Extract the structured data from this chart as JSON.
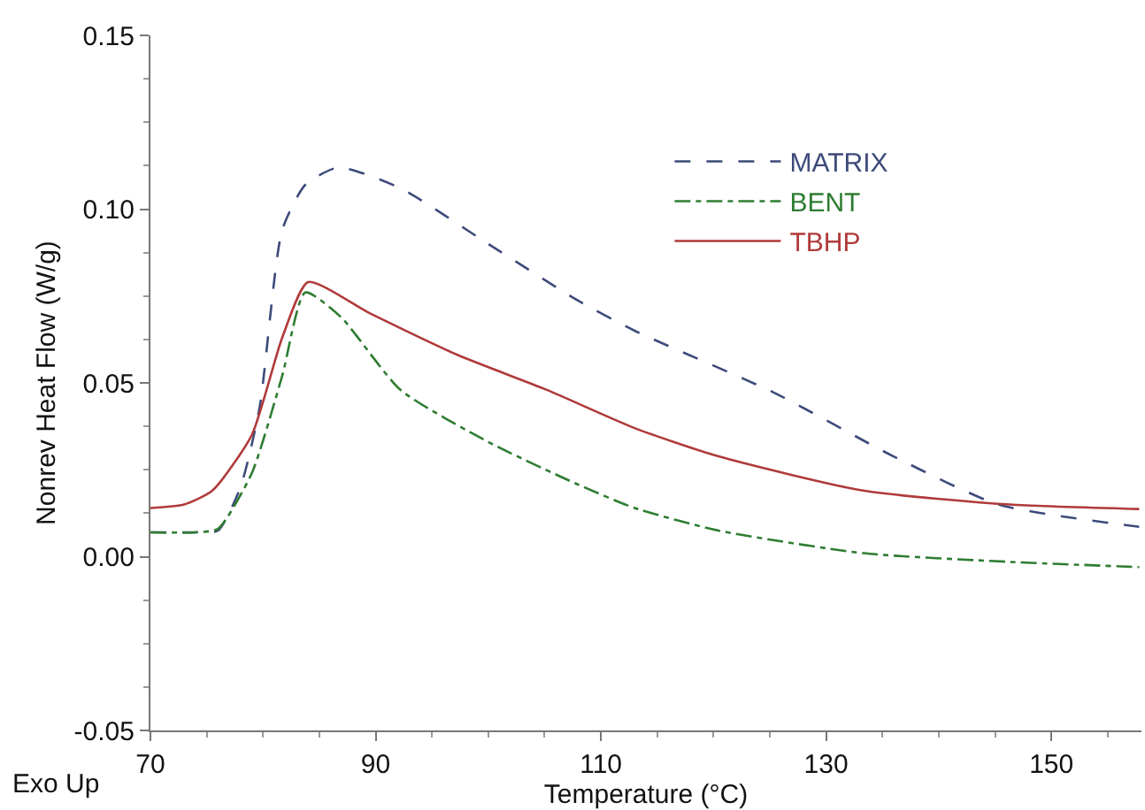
{
  "chart_data": {
    "type": "line",
    "xlabel": "Temperature (°C)",
    "ylabel": "Nonrev Heat Flow (W/g)",
    "annotations": [
      "Exo Up"
    ],
    "xlim": [
      70,
      158
    ],
    "xticks": [
      70,
      90,
      110,
      130,
      150
    ],
    "ylim": [
      -0.05,
      0.15
    ],
    "yticks": [
      {
        "value": -0.05,
        "label": "-0.05"
      },
      {
        "value": 0,
        "label": "0.00"
      },
      {
        "value": 0.05,
        "label": "0.05"
      },
      {
        "value": 0.1,
        "label": "0.10"
      },
      {
        "value": 0.15,
        "label": "0.15"
      }
    ],
    "legend": "top right",
    "marker": "none",
    "series": [
      {
        "name": "MATRIX",
        "color": "#3d4a7a",
        "line_style": "dashed",
        "x": [
          70,
          74,
          76,
          78,
          79.7,
          81.7,
          83.75,
          86.7,
          92.2,
          100,
          107.8,
          113,
          125.5,
          135.9,
          145.3,
          157.8
        ],
        "values": [
          0.007,
          0.007,
          0.0075,
          0.02,
          0.043,
          0.094,
          0.107,
          0.112,
          0.106,
          0.09,
          0.074,
          0.065,
          0.047,
          0.029,
          0.015,
          0.0086
        ]
      },
      {
        "name": "BENT",
        "color": "#2e7d32",
        "line_style": "dashdot",
        "x": [
          70,
          74,
          76,
          79,
          81.7,
          83.75,
          86.9,
          92.2,
          100,
          107.8,
          113,
          120.3,
          133.3,
          146.3,
          157.8
        ],
        "values": [
          0.007,
          0.007,
          0.008,
          0.024,
          0.052,
          0.076,
          0.069,
          0.048,
          0.033,
          0.021,
          0.014,
          0.0076,
          0.001,
          -0.0015,
          -0.003
        ]
      },
      {
        "name": "TBHP",
        "color": "#b03a3a",
        "line_style": "solid",
        "x": [
          70,
          73,
          75.5,
          79,
          81.7,
          84,
          89.5,
          97.3,
          105.2,
          113,
          120.3,
          133.3,
          146.3,
          157.8
        ],
        "values": [
          0.014,
          0.015,
          0.019,
          0.035,
          0.063,
          0.079,
          0.07,
          0.058,
          0.048,
          0.037,
          0.029,
          0.019,
          0.015,
          0.0137
        ]
      }
    ]
  }
}
